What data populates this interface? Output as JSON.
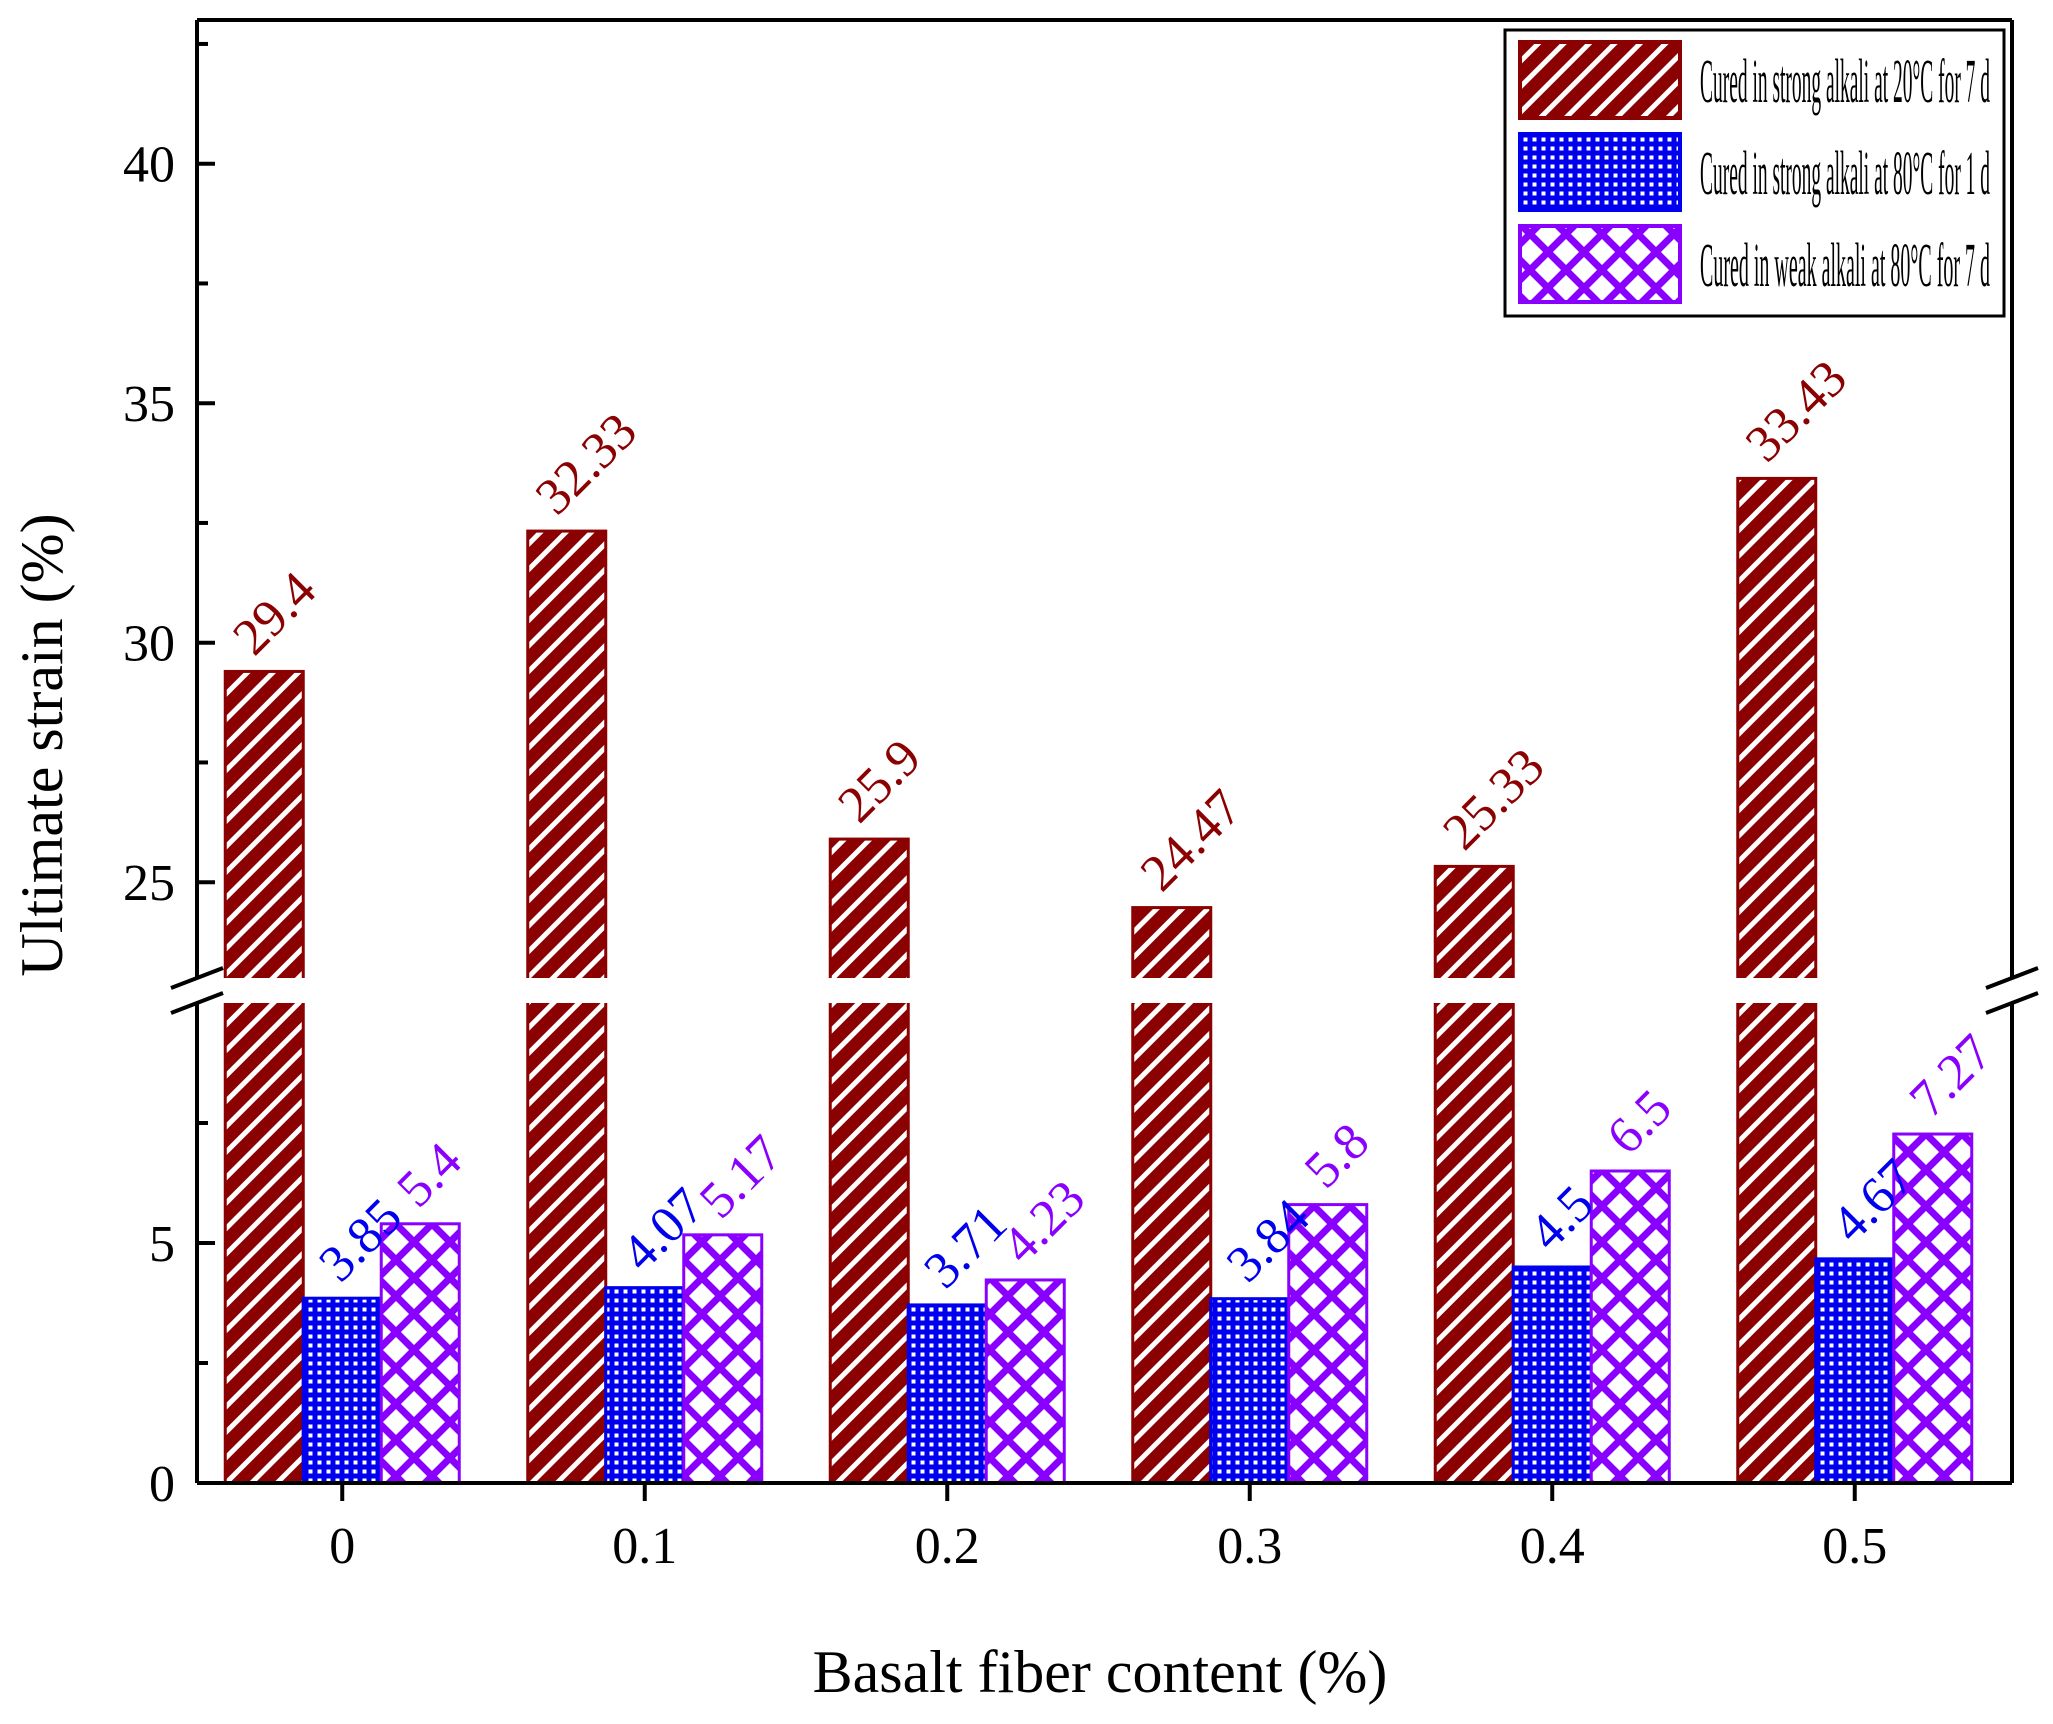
{
  "chart_data": {
    "type": "bar",
    "xlabel": "Basalt fiber content (%)",
    "ylabel": "Ultimate strain (%)",
    "categories": [
      "0",
      "0.1",
      "0.2",
      "0.3",
      "0.4",
      "0.5"
    ],
    "y_break": {
      "lower_range": [
        0,
        10
      ],
      "upper_range": [
        23,
        43
      ]
    },
    "y_ticks_lower": [
      {
        "value": 0,
        "label": "0"
      },
      {
        "value": 5,
        "label": "5"
      }
    ],
    "y_ticks_upper": [
      {
        "value": 25,
        "label": "25"
      },
      {
        "value": 30,
        "label": "30"
      },
      {
        "value": 35,
        "label": "35"
      },
      {
        "value": 40,
        "label": "40"
      }
    ],
    "series": [
      {
        "name": "Cured in strong alkali at 20°C for 7 d",
        "values": [
          29.4,
          32.33,
          25.9,
          24.47,
          25.33,
          33.43
        ],
        "labels": [
          "29.4",
          "32.33",
          "25.9",
          "24.47",
          "25.33",
          "33.43"
        ],
        "color": "#8b0000",
        "pattern": "diagonal-hatch"
      },
      {
        "name": "Cured in strong alkali at 80°C for 1 d",
        "values": [
          3.85,
          4.07,
          3.71,
          3.84,
          4.5,
          4.67
        ],
        "labels": [
          "3.85",
          "4.07",
          "3.71",
          "3.84",
          "4.5",
          "4.67"
        ],
        "color": "#0000ee",
        "pattern": "dot-grid"
      },
      {
        "name": "Cured in weak alkali at 80°C for 7 d",
        "values": [
          5.4,
          5.17,
          4.23,
          5.8,
          6.5,
          7.27
        ],
        "labels": [
          "5.4",
          "5.17",
          "4.23",
          "5.8",
          "6.5",
          "7.27"
        ],
        "color": "#8a00ff",
        "pattern": "crosshatch"
      }
    ],
    "legend_position": "top-right",
    "grid": false
  }
}
